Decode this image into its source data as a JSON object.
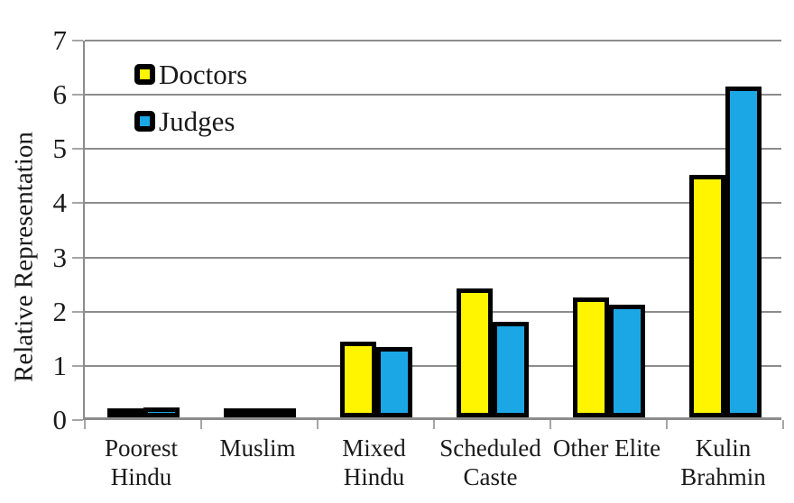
{
  "chart_data": {
    "type": "bar",
    "title": "",
    "xlabel": "",
    "ylabel": "Relative Representation",
    "ylim": [
      0,
      7
    ],
    "yticks": [
      0,
      1,
      2,
      3,
      4,
      5,
      6,
      7
    ],
    "grid": true,
    "legend_position": "top-left-inside",
    "categories": [
      [
        "Poorest",
        "Hindu"
      ],
      [
        "Muslim"
      ],
      [
        "Mixed",
        "Hindu"
      ],
      [
        "Scheduled",
        "Caste"
      ],
      [
        "Other Elite"
      ],
      [
        "Kulin",
        "Brahmin"
      ]
    ],
    "series": [
      {
        "name": "Doctors",
        "color": "#FFF500",
        "values": [
          0.08,
          0.12,
          1.4,
          2.38,
          2.21,
          4.47
        ]
      },
      {
        "name": "Judges",
        "color": "#1BA7E6",
        "values": [
          0.18,
          0.15,
          1.3,
          1.77,
          2.08,
          6.1
        ]
      }
    ],
    "bar_border_color": "#000000",
    "grid_color": "#8C8C8C",
    "axis_color": "#8C8C8C",
    "tick_color": "#A6A6A6",
    "text_color": "#1A1A1A"
  }
}
